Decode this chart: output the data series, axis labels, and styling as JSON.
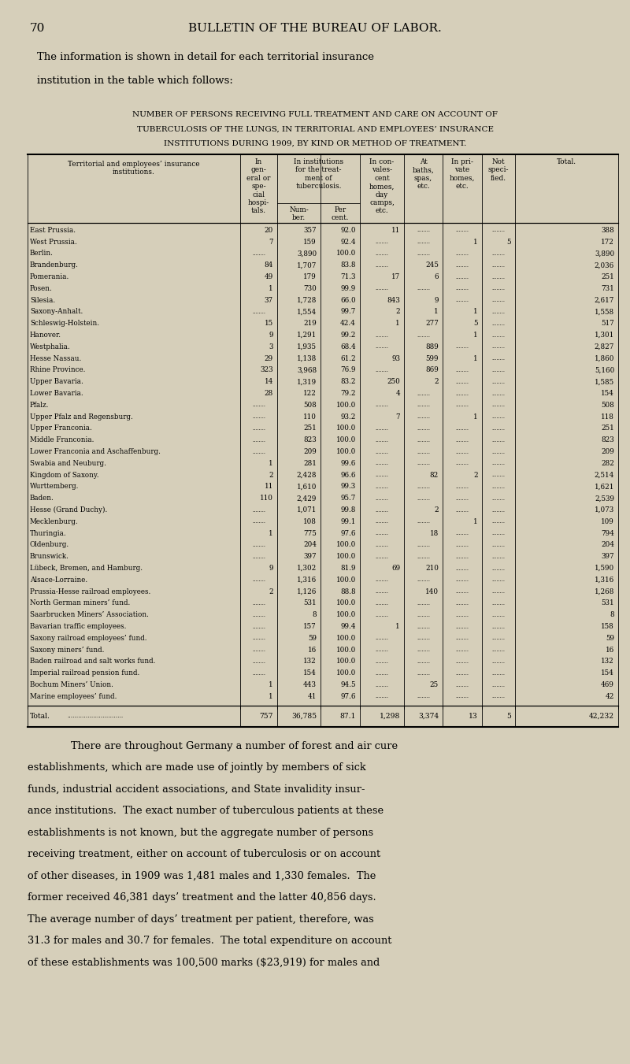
{
  "page_number": "70",
  "header": "BULLETIN OF THE BUREAU OF LABOR.",
  "intro_text": "The information is shown in detail for each territorial insurance\ninstitution in the table which follows:",
  "table_title_line1": "NUMBER OF PERSONS RECEIVING FULL TREATMENT AND CARE ON ACCOUNT OF",
  "table_title_line2": "TUBERCULOSIS OF THE LUNGS, IN TERRITORIAL AND EMPLOYEES’ INSURANCE",
  "table_title_line3": "INSTITUTIONS DURING 1909, BY KIND OR METHOD OF TREATMENT.",
  "bg_color": "#d6cfba",
  "rows": [
    [
      "East Prussia",
      "20",
      "357",
      "92.0",
      "11",
      "",
      "",
      "",
      "388"
    ],
    [
      "West Prussia",
      "7",
      "159",
      "92.4",
      "",
      "",
      "1",
      "5",
      "172"
    ],
    [
      "Berlin",
      "",
      "3,890",
      "100.0",
      "",
      "",
      "",
      "",
      "3,890"
    ],
    [
      "Brandenburg",
      "84",
      "1,707",
      "83.8",
      "",
      "245",
      "",
      "",
      "2,036"
    ],
    [
      "Pomerania",
      "49",
      "179",
      "71.3",
      "17",
      "6",
      "",
      "",
      "251"
    ],
    [
      "Posen",
      "1",
      "730",
      "99.9",
      "",
      "",
      "",
      "",
      "731"
    ],
    [
      "Silesia",
      "37",
      "1,728",
      "66.0",
      "843",
      "9",
      "",
      "",
      "2,617"
    ],
    [
      "Saxony-Anhalt",
      "",
      "1,554",
      "99.7",
      "2",
      "1",
      "1",
      "",
      "1,558"
    ],
    [
      "Schleswig-Holstein",
      "15",
      "219",
      "42.4",
      "1",
      "277",
      "5",
      "",
      "517"
    ],
    [
      "Hanover",
      "9",
      "1,291",
      "99.2",
      "",
      "",
      "1",
      "",
      "1,301"
    ],
    [
      "Westphalia",
      "3",
      "1,935",
      "68.4",
      "",
      "889",
      "",
      "",
      "2,827"
    ],
    [
      "Hesse Nassau",
      "29",
      "1,138",
      "61.2",
      "93",
      "599",
      "1",
      "",
      "1,860"
    ],
    [
      "Rhine Province",
      "323",
      "3,968",
      "76.9",
      "",
      "869",
      "",
      "",
      "5,160"
    ],
    [
      "Upper Bavaria",
      "14",
      "1,319",
      "83.2",
      "250",
      "2",
      "",
      "",
      "1,585"
    ],
    [
      "Lower Bavaria",
      "28",
      "122",
      "79.2",
      "4",
      "",
      "",
      "",
      "154"
    ],
    [
      "Pfalz",
      "",
      "508",
      "100.0",
      "",
      "",
      "",
      "",
      "508"
    ],
    [
      "Upper Pfalz and Regensburg",
      "",
      "110",
      "93.2",
      "7",
      "",
      "1",
      "",
      "118"
    ],
    [
      "Upper Franconia",
      "",
      "251",
      "100.0",
      "",
      "",
      "",
      "",
      "251"
    ],
    [
      "Middle Franconia",
      "",
      "823",
      "100.0",
      "",
      "",
      "",
      "",
      "823"
    ],
    [
      "Lower Franconia and Aschaffenburg",
      "",
      "209",
      "100.0",
      "",
      "",
      "",
      "",
      "209"
    ],
    [
      "Swabia and Neuburg",
      "1",
      "281",
      "99.6",
      "",
      "",
      "",
      "",
      "282"
    ],
    [
      "Kingdom of Saxony",
      "2",
      "2,428",
      "96.6",
      "",
      "82",
      "2",
      "",
      "2,514"
    ],
    [
      "Wurttemberg",
      "11",
      "1,610",
      "99.3",
      "",
      "",
      "",
      "",
      "1,621"
    ],
    [
      "Baden",
      "110",
      "2,429",
      "95.7",
      "",
      "",
      "",
      "",
      "2,539"
    ],
    [
      "Hesse (Grand Duchy)",
      "",
      "1,071",
      "99.8",
      "",
      "2",
      "",
      "",
      "1,073"
    ],
    [
      "Mecklenburg",
      "",
      "108",
      "99.1",
      "",
      "",
      "1",
      "",
      "109"
    ],
    [
      "Thuringia",
      "1",
      "775",
      "97.6",
      "",
      "18",
      "",
      "",
      "794"
    ],
    [
      "Oldenburg",
      "",
      "204",
      "100.0",
      "",
      "",
      "",
      "",
      "204"
    ],
    [
      "Brunswick",
      "",
      "397",
      "100.0",
      "",
      "",
      "",
      "",
      "397"
    ],
    [
      "Lübeck, Bremen, and Hamburg",
      "9",
      "1,302",
      "81.9",
      "69",
      "210",
      "",
      "",
      "1,590"
    ],
    [
      "Alsace-Lorraine",
      "",
      "1,316",
      "100.0",
      "",
      "",
      "",
      "",
      "1,316"
    ],
    [
      "Prussia-Hesse railroad employees",
      "2",
      "1,126",
      "88.8",
      "",
      "140",
      "",
      "",
      "1,268"
    ],
    [
      "North German miners’ fund",
      "",
      "531",
      "100.0",
      "",
      "",
      "",
      "",
      "531"
    ],
    [
      "Saarbrucken Miners’ Association",
      "",
      "8",
      "100.0",
      "",
      "",
      "",
      "",
      "8"
    ],
    [
      "Bavarian traffic employees",
      "",
      "157",
      "99.4",
      "1",
      "",
      "",
      "",
      "158"
    ],
    [
      "Saxony railroad employees’ fund",
      "",
      "59",
      "100.0",
      "",
      "",
      "",
      "",
      "59"
    ],
    [
      "Saxony miners’ fund",
      "",
      "16",
      "100.0",
      "",
      "",
      "",
      "",
      "16"
    ],
    [
      "Baden railroad and salt works fund",
      "",
      "132",
      "100.0",
      "",
      "",
      "",
      "",
      "132"
    ],
    [
      "Imperial railroad pension fund",
      "",
      "154",
      "100.0",
      "",
      "",
      "",
      "",
      "154"
    ],
    [
      "Bochum Miners’ Union",
      "1",
      "443",
      "94.5",
      "",
      "25",
      "",
      "",
      "469"
    ],
    [
      "Marine employees’ fund",
      "1",
      "41",
      "97.6",
      "",
      "",
      "",
      "",
      "42"
    ]
  ],
  "total_row": [
    "Total",
    "757",
    "36,785",
    "87.1",
    "1,298",
    "3,374",
    "13",
    "5",
    "42,232"
  ],
  "footer_text": "There are throughout Germany a number of forest and air cure\nestablishments, which are made use of jointly by members of sick\nfunds, industrial accident associations, and State invalidity insur-\nance institutions.  The exact number of tuberculous patients at these\nestablishments is not known, but the aggregate number of persons\nreceiving treatment, either on account of tuberculosis or on account\nof other diseases, in 1909 was 1,481 males and 1,330 females.  The\nformer received 46,381 days’ treatment and the latter 40,856 days.\nThe average number of days’ treatment per patient, therefore, was\n31.3 for males and 30.7 for females.  The total expenditure on account\nof these establishments was 100,500 marks ($23,919) for males and"
}
